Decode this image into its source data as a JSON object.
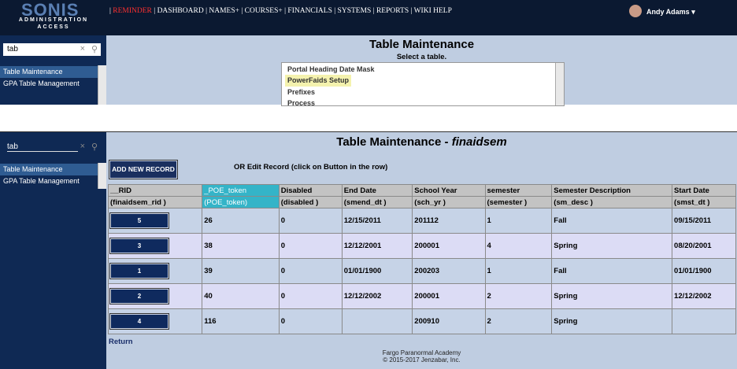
{
  "top": {
    "logo_name": "SONIS",
    "logo_line1": "ADMINISTRATION",
    "logo_line2": "ACCESS",
    "nav": [
      "REMINDER",
      "DASHBOARD",
      "NAMES+",
      "COURSES+",
      "FINANCIALS",
      "SYSTEMS",
      "REPORTS",
      "WIKI HELP"
    ],
    "user": "Andy Adams",
    "search": "tab",
    "menu": [
      "Table Maintenance",
      "GPA Table Management"
    ],
    "title": "Table Maintenance",
    "prompt": "Select a table.",
    "tables": [
      "Portal Heading Date Mask",
      "PowerFaids Setup",
      "Prefixes",
      "Process"
    ]
  },
  "bottom": {
    "search": "tab",
    "menu": [
      "Table Maintenance",
      "GPA Table Management"
    ],
    "title": "Table Maintenance -",
    "table_name": "finaidsem",
    "add_button": "ADD NEW RECORD",
    "edit_hint": "OR Edit Record (click on Button in the row)",
    "table": {
      "headers": [
        "__RID",
        "_POE_token",
        "Disabled",
        "End Date",
        "School Year",
        "semester",
        "Semester Description",
        "Start Date"
      ],
      "fields": [
        "(finaidsem_rid )",
        "(POE_token)",
        "(disabled )",
        "(smend_dt )",
        "(sch_yr )",
        "(semester )",
        "(sm_desc )",
        "(smst_dt )"
      ],
      "rows": [
        [
          "5",
          "26",
          "0",
          "12/15/2011",
          "201112",
          "1",
          "Fall",
          "09/15/2011"
        ],
        [
          "3",
          "38",
          "0",
          "12/12/2001",
          "200001",
          "4",
          "Spring",
          "08/20/2001"
        ],
        [
          "1",
          "39",
          "0",
          "01/01/1900",
          "200203",
          "1",
          "Fall",
          "01/01/1900"
        ],
        [
          "2",
          "40",
          "0",
          "12/12/2002",
          "200001",
          "2",
          "Spring",
          "12/12/2002"
        ],
        [
          "4",
          "116",
          "0",
          null,
          "200910",
          "2",
          "Spring",
          null
        ]
      ]
    },
    "return": "Return",
    "footer": [
      "Fargo Paranormal Academy",
      "© 2015-2017 Jenzabar, Inc."
    ]
  }
}
